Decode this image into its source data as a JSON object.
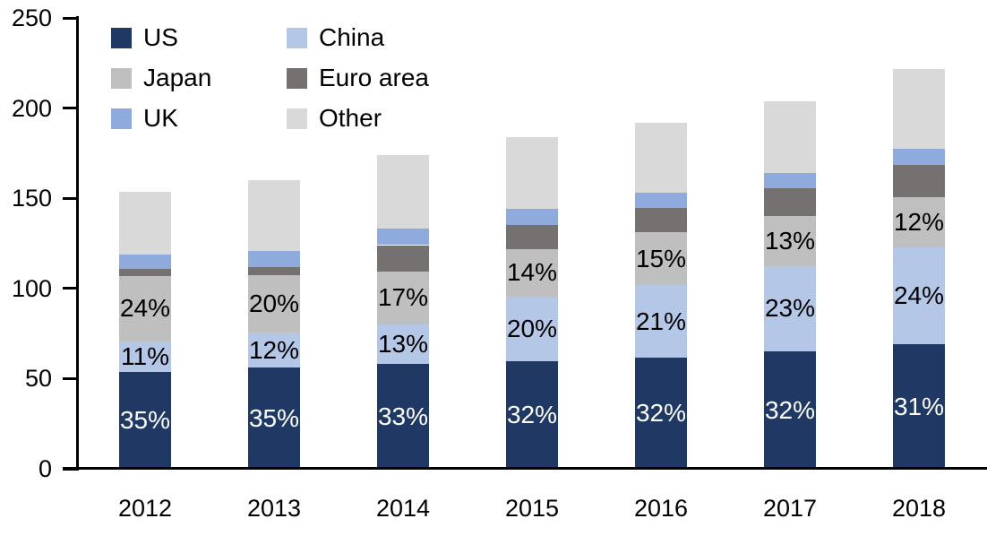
{
  "chart_data": {
    "type": "bar",
    "stacked": true,
    "title": "",
    "xlabel": "",
    "ylabel": "",
    "categories": [
      "2012",
      "2013",
      "2014",
      "2015",
      "2016",
      "2017",
      "2018"
    ],
    "series": [
      {
        "name": "US",
        "color": "#1F3864",
        "values": [
          53.5,
          56.0,
          58.0,
          59.5,
          61.5,
          65.0,
          69.0
        ],
        "percent_labels": [
          "35%",
          "35%",
          "33%",
          "32%",
          "32%",
          "32%",
          "31%"
        ],
        "label_color": "#FFFFFF"
      },
      {
        "name": "China",
        "color": "#B4C7E7",
        "values": [
          17.0,
          19.5,
          22.0,
          36.0,
          40.5,
          47.5,
          54.0
        ],
        "percent_labels": [
          "11%",
          "12%",
          "13%",
          "20%",
          "21%",
          "23%",
          "24%"
        ],
        "label_color": "#000000"
      },
      {
        "name": "Japan",
        "color": "#BFBFBF",
        "values": [
          36.5,
          32.0,
          29.5,
          26.5,
          29.0,
          27.5,
          27.5
        ],
        "percent_labels": [
          "24%",
          "20%",
          "17%",
          "14%",
          "15%",
          "13%",
          "12%"
        ],
        "label_color": "#000000"
      },
      {
        "name": "Euro area",
        "color": "#767171",
        "values": [
          4.0,
          4.5,
          14.5,
          13.0,
          13.5,
          15.5,
          18.0
        ],
        "percent_labels": null,
        "label_color": null
      },
      {
        "name": "UK",
        "color": "#8FAADC",
        "values": [
          8.0,
          9.0,
          9.0,
          9.0,
          8.5,
          8.5,
          9.0
        ],
        "percent_labels": null,
        "label_color": null
      },
      {
        "name": "Other",
        "color": "#D9D9D9",
        "values": [
          34.5,
          39.0,
          41.0,
          40.0,
          39.0,
          40.0,
          44.0
        ],
        "percent_labels": null,
        "label_color": null
      }
    ],
    "totals": [
      153.5,
      160,
      174,
      184,
      192,
      204,
      221.5
    ],
    "ylim": [
      0,
      250
    ],
    "yticks": [
      0,
      50,
      100,
      150,
      200,
      250
    ],
    "ytick_labels": [
      "0",
      "50",
      "100",
      "150",
      "200",
      "250"
    ],
    "grid": false,
    "legend_position": "top-left-two-columns",
    "legend_order": [
      "US",
      "China",
      "Japan",
      "Euro area",
      "UK",
      "Other"
    ],
    "axis_color": "#000000",
    "background_color": "#FFFFFF"
  }
}
